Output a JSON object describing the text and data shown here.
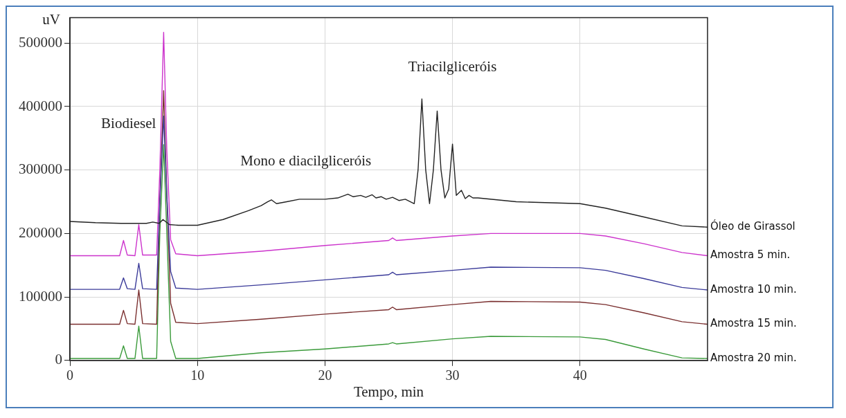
{
  "chart_data": {
    "type": "line",
    "xlabel": "Tempo, min",
    "ylabel": "uV",
    "xlim": [
      0,
      50
    ],
    "xticks": [
      0,
      10,
      20,
      30,
      40
    ],
    "ylim": [
      0,
      540000
    ],
    "yticks": [
      0,
      100000,
      200000,
      300000,
      400000,
      500000
    ],
    "grid": true,
    "legend": false,
    "marker": "none",
    "line_style": "solid",
    "annotations": [
      "Biodiesel",
      "Mono e diacilgliceróis",
      "Triacilgliceróis"
    ],
    "series": [
      {
        "name": "Óleo de Girassol",
        "color": "#222222",
        "x": [
          0,
          2,
          4,
          6,
          6.5,
          7,
          7.3,
          7.8,
          8.5,
          10,
          12,
          14,
          15,
          15.5,
          15.8,
          16.2,
          17,
          18,
          20,
          21,
          21.8,
          22.2,
          22.8,
          23.2,
          23.7,
          24,
          24.4,
          24.8,
          25.3,
          25.8,
          26.3,
          27,
          27.3,
          27.6,
          27.9,
          28.2,
          28.5,
          28.8,
          29.1,
          29.4,
          29.7,
          30,
          30.3,
          30.7,
          31,
          31.3,
          31.6,
          32,
          35,
          40,
          42,
          45,
          48,
          50
        ],
        "values": [
          219000,
          217000,
          216000,
          216000,
          218000,
          216000,
          222000,
          214000,
          213000,
          213000,
          222000,
          236000,
          244000,
          250000,
          253000,
          247000,
          250000,
          254000,
          254000,
          256000,
          262000,
          258000,
          260000,
          257000,
          261000,
          256000,
          258000,
          254000,
          257000,
          252000,
          254000,
          247000,
          300000,
          412000,
          300000,
          247000,
          300000,
          393000,
          300000,
          256000,
          270000,
          341000,
          260000,
          268000,
          255000,
          260000,
          256000,
          256000,
          250000,
          247000,
          240000,
          226000,
          212000,
          210000
        ]
      },
      {
        "name": "Amostra 5 min.",
        "color": "#cc33cc",
        "x": [
          0,
          3.9,
          4.2,
          4.5,
          5.1,
          5.4,
          5.7,
          6.8,
          7.05,
          7.35,
          7.6,
          7.9,
          8.3,
          10,
          15,
          20,
          25,
          25.3,
          25.6,
          30,
          33,
          40,
          42,
          45,
          48,
          50
        ],
        "values": [
          165000,
          165000,
          189000,
          166000,
          165000,
          214000,
          166000,
          166000,
          300000,
          517000,
          330000,
          190000,
          168000,
          165000,
          172000,
          181000,
          189000,
          193000,
          189000,
          196000,
          200000,
          200000,
          196000,
          184000,
          170000,
          165000
        ]
      },
      {
        "name": "Amostra 10 min.",
        "color": "#3a3a99",
        "x": [
          0,
          3.9,
          4.2,
          4.5,
          5.1,
          5.4,
          5.7,
          6.8,
          7.05,
          7.35,
          7.6,
          7.9,
          8.3,
          10,
          15,
          20,
          25,
          25.3,
          25.6,
          30,
          33,
          40,
          42,
          45,
          48,
          50
        ],
        "values": [
          112000,
          112000,
          130000,
          113000,
          112000,
          153000,
          113000,
          112000,
          250000,
          385000,
          260000,
          140000,
          114000,
          112000,
          119000,
          127000,
          135000,
          139000,
          135000,
          142000,
          147000,
          146000,
          142000,
          129000,
          115000,
          111000
        ]
      },
      {
        "name": "Amostra 15 min.",
        "color": "#7a2f2f",
        "x": [
          0,
          3.9,
          4.2,
          4.5,
          5.1,
          5.4,
          5.7,
          6.8,
          7.05,
          7.35,
          7.6,
          7.9,
          8.3,
          10,
          15,
          20,
          25,
          25.3,
          25.6,
          30,
          33,
          40,
          42,
          45,
          48,
          50
        ],
        "values": [
          57000,
          57000,
          79000,
          58000,
          57000,
          111000,
          58000,
          57000,
          250000,
          425000,
          260000,
          90000,
          60000,
          58000,
          65000,
          73000,
          80000,
          84000,
          80000,
          88000,
          93000,
          92000,
          88000,
          75000,
          61000,
          57000
        ]
      },
      {
        "name": "Amostra 20 min.",
        "color": "#3a9a3a",
        "x": [
          0,
          3.9,
          4.2,
          4.5,
          5.1,
          5.4,
          5.7,
          6.8,
          7.05,
          7.35,
          7.6,
          7.9,
          8.3,
          10,
          15,
          20,
          25,
          25.3,
          25.6,
          30,
          33,
          40,
          42,
          45,
          48,
          50
        ],
        "values": [
          3000,
          3000,
          23000,
          3000,
          3000,
          54000,
          3000,
          3000,
          200000,
          340000,
          200000,
          30000,
          3000,
          3000,
          12000,
          18000,
          26000,
          28000,
          26000,
          34000,
          38000,
          37000,
          33000,
          18000,
          4000,
          3000
        ]
      }
    ]
  }
}
